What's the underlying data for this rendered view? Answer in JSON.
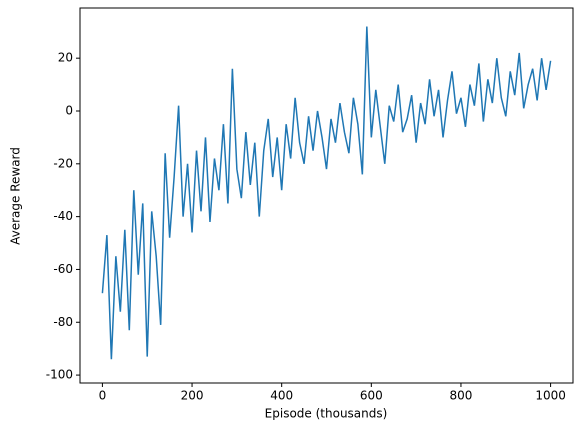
{
  "chart_data": {
    "type": "line",
    "x_label": "Episode (thousands)",
    "y_label": "Average Reward",
    "x": [
      0,
      10,
      20,
      30,
      40,
      50,
      60,
      70,
      80,
      90,
      100,
      110,
      120,
      130,
      140,
      150,
      160,
      170,
      180,
      190,
      200,
      210,
      220,
      230,
      240,
      250,
      260,
      270,
      280,
      290,
      300,
      310,
      320,
      330,
      340,
      350,
      360,
      370,
      380,
      390,
      400,
      410,
      420,
      430,
      440,
      450,
      460,
      470,
      480,
      490,
      500,
      510,
      520,
      530,
      540,
      550,
      560,
      570,
      580,
      590,
      600,
      610,
      620,
      630,
      640,
      650,
      660,
      670,
      680,
      690,
      700,
      710,
      720,
      730,
      740,
      750,
      760,
      770,
      780,
      790,
      800,
      810,
      820,
      830,
      840,
      850,
      860,
      870,
      880,
      890,
      900,
      910,
      920,
      930,
      940,
      950,
      960,
      970,
      980,
      990,
      1000
    ],
    "series": [
      {
        "name": "Average Reward",
        "color": "#1f77b4",
        "values": [
          -69,
          -47,
          -94,
          -55,
          -76,
          -45,
          -83,
          -30,
          -62,
          -35,
          -93,
          -38,
          -55,
          -81,
          -16,
          -48,
          -25,
          2,
          -40,
          -20,
          -46,
          -15,
          -38,
          -10,
          -42,
          -18,
          -30,
          -5,
          -35,
          16,
          -22,
          -33,
          -8,
          -28,
          -12,
          -40,
          -15,
          -3,
          -25,
          -10,
          -30,
          -5,
          -18,
          5,
          -12,
          -20,
          -2,
          -15,
          0,
          -10,
          -22,
          -3,
          -12,
          3,
          -8,
          -16,
          5,
          -5,
          -24,
          32,
          -10,
          8,
          -6,
          -20,
          2,
          -4,
          10,
          -8,
          -3,
          6,
          -12,
          3,
          -5,
          12,
          -2,
          8,
          -10,
          4,
          15,
          -1,
          5,
          -6,
          10,
          2,
          18,
          -4,
          12,
          3,
          20,
          5,
          -2,
          15,
          6,
          22,
          1,
          10,
          16,
          4,
          20,
          8,
          19
        ]
      }
    ],
    "xlim": [
      -50,
      1050
    ],
    "xticks": [
      0,
      200,
      400,
      600,
      800,
      1000
    ],
    "ylim": [
      -103,
      39
    ],
    "yticks": [
      -100,
      -80,
      -60,
      -40,
      -20,
      0,
      20
    ]
  }
}
